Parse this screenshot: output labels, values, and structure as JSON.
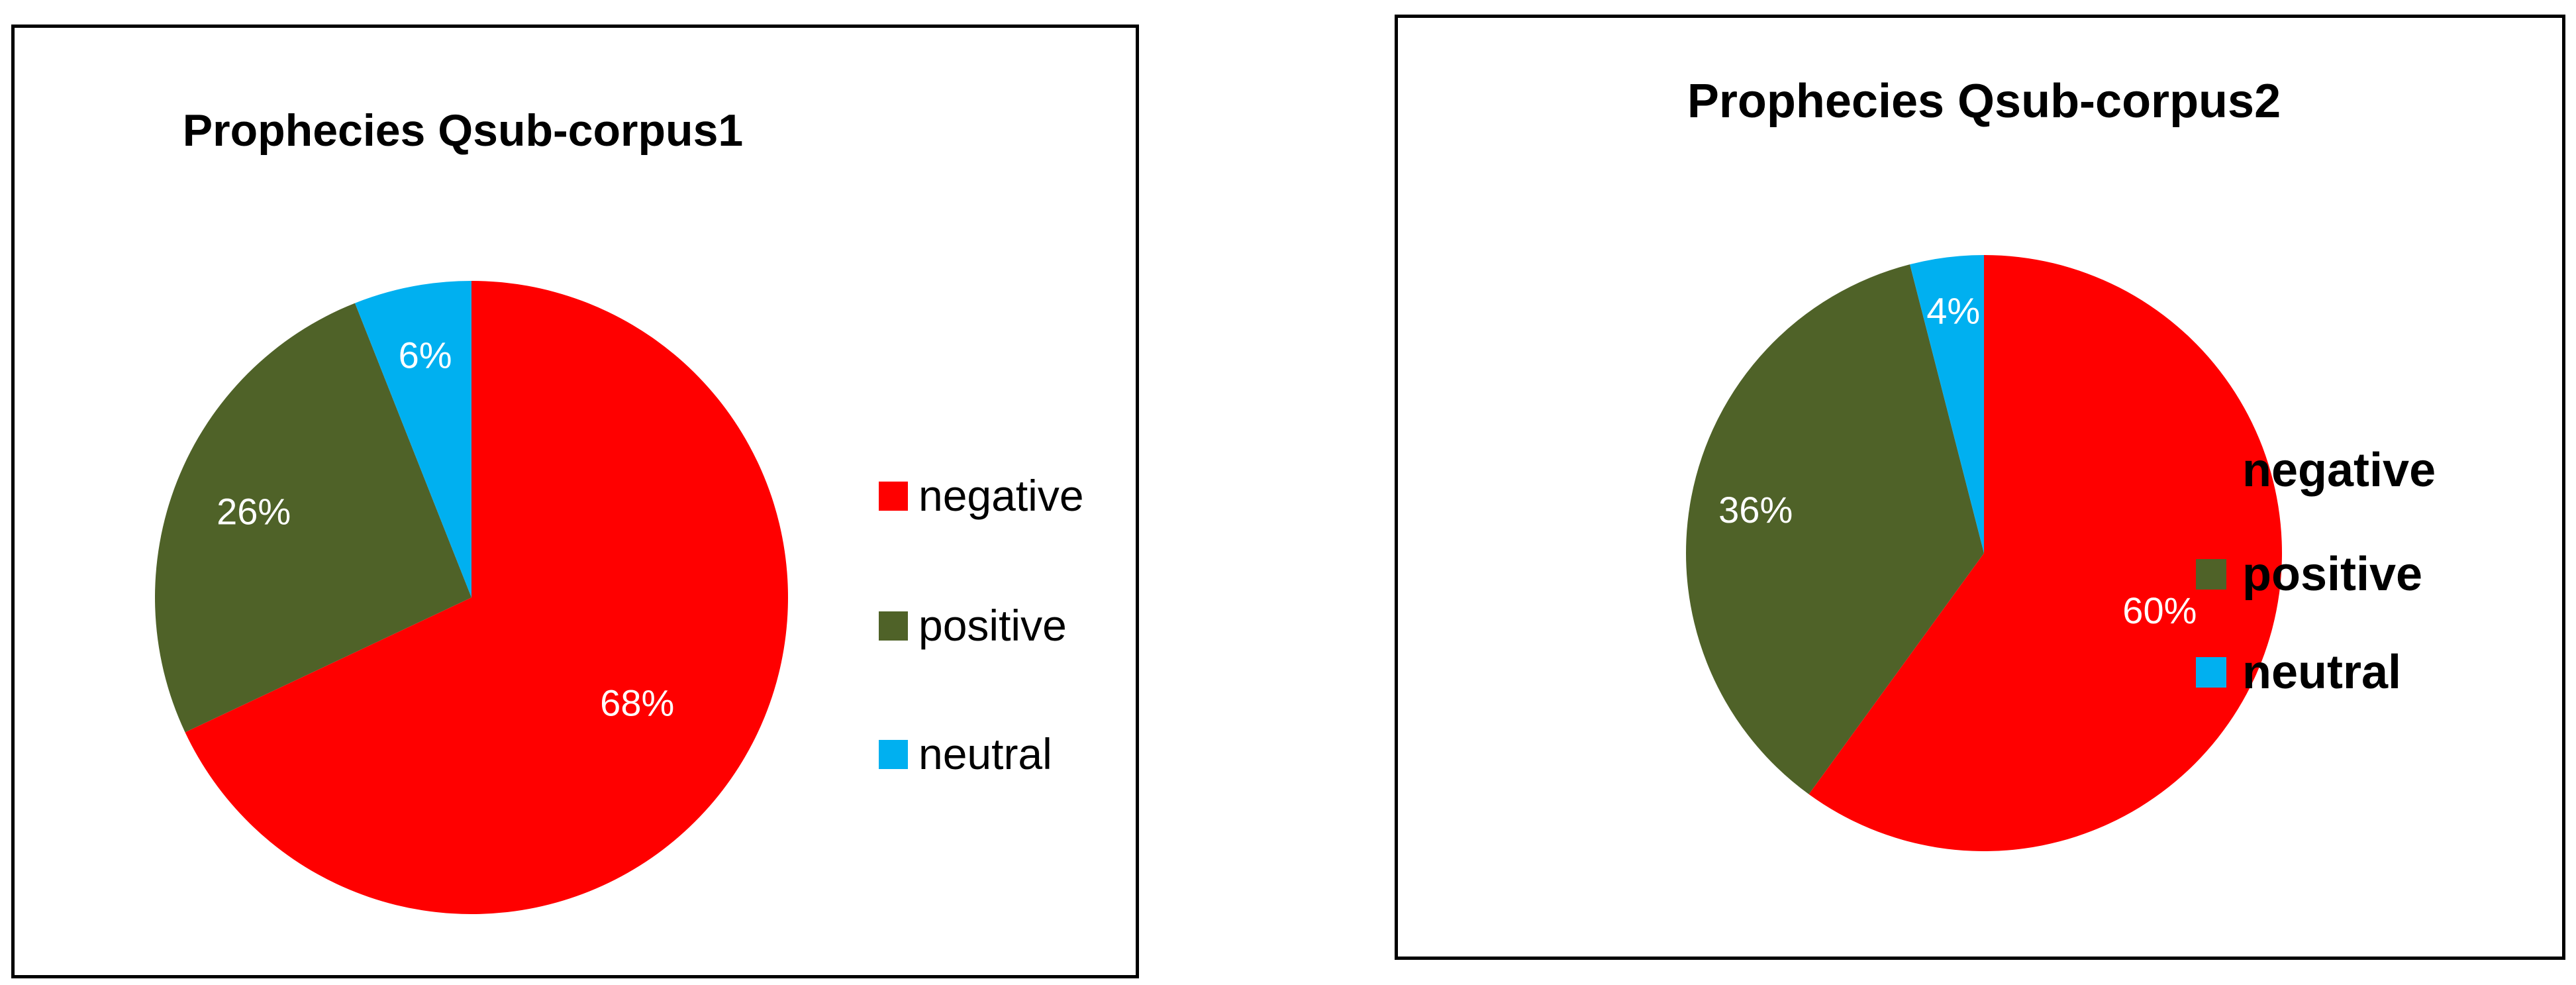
{
  "chart_data": [
    {
      "type": "pie",
      "title": "Prophecies Qsub-corpus1",
      "categories": [
        "negative",
        "positive",
        "neutral"
      ],
      "values": [
        68,
        26,
        6
      ],
      "labels": [
        "68%",
        "26%",
        "6%"
      ],
      "colors": [
        "#ff0000",
        "#4f6228",
        "#00b0f0"
      ],
      "legend_position": "right"
    },
    {
      "type": "pie",
      "title": "Prophecies Qsub-corpus2",
      "categories": [
        "negative",
        "positive",
        "neutral"
      ],
      "values": [
        60,
        36,
        4
      ],
      "labels": [
        "60%",
        "36%",
        "4%"
      ],
      "colors": [
        "#ff0000",
        "#4f6228",
        "#00b0f0"
      ],
      "legend_position": "right"
    }
  ]
}
